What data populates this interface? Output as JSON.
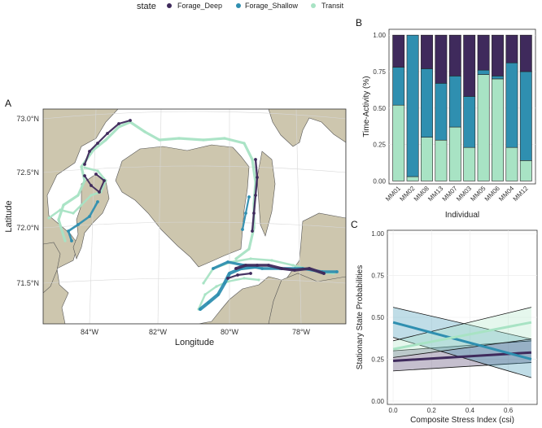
{
  "legend": {
    "title": "state",
    "items": [
      {
        "label": "Forage_Deep",
        "color": "#3f2a5c"
      },
      {
        "label": "Forage_Shallow",
        "color": "#2f8fb0"
      },
      {
        "label": "Transit",
        "color": "#a8e3c4"
      }
    ]
  },
  "panel_labels": {
    "a": "A",
    "b": "B",
    "c": "C"
  },
  "map": {
    "xlabel": "Longitude",
    "ylabel": "Latitude",
    "x_ticks": [
      "84°W",
      "82°W",
      "80°W",
      "78°W"
    ],
    "y_ticks": [
      "73.0°N",
      "72.5°N",
      "72.0°N",
      "71.5°N"
    ],
    "colors": {
      "land": "#cdc6ae",
      "water": "#ffffff",
      "coast": "#4a4a4a"
    }
  },
  "chart_data": [
    {
      "type": "bar",
      "stacked": true,
      "xlabel": "Individual",
      "ylabel": "Time-Activity (%)",
      "ylim": [
        0,
        1
      ],
      "y_ticks": [
        "0.00",
        "0.25",
        "0.50",
        "0.75",
        "1.00"
      ],
      "categories": [
        "MM01",
        "MM02",
        "MM08",
        "MM13",
        "MM07",
        "MM03",
        "MM05",
        "MM06",
        "MM04",
        "MM12"
      ],
      "series": [
        {
          "name": "Transit",
          "color": "#a8e3c4",
          "values": [
            0.52,
            0.03,
            0.3,
            0.28,
            0.37,
            0.23,
            0.73,
            0.7,
            0.23,
            0.14
          ]
        },
        {
          "name": "Forage_Shallow",
          "color": "#2f8fb0",
          "values": [
            0.26,
            0.97,
            0.47,
            0.39,
            0.35,
            0.35,
            0.03,
            0.02,
            0.58,
            0.61
          ]
        },
        {
          "name": "Forage_Deep",
          "color": "#3f2a5c",
          "values": [
            0.22,
            0.0,
            0.23,
            0.33,
            0.28,
            0.42,
            0.24,
            0.28,
            0.19,
            0.25
          ]
        }
      ]
    },
    {
      "type": "line",
      "xlabel": "Composite Stress Index (csi)",
      "ylabel": "Stationary State Probabilities",
      "xlim": [
        -0.03,
        0.75
      ],
      "ylim": [
        -0.02,
        1.02
      ],
      "x_ticks": [
        "0.0",
        "0.2",
        "0.4",
        "0.6"
      ],
      "y_ticks": [
        "0.00",
        "0.25",
        "0.50",
        "0.75",
        "1.00"
      ],
      "x": [
        0.0,
        0.72
      ],
      "series": [
        {
          "name": "Forage_Deep",
          "color": "#3f2a5c",
          "values": [
            0.24,
            0.29
          ],
          "ci_lower": [
            0.18,
            0.23
          ],
          "ci_upper": [
            0.3,
            0.36
          ]
        },
        {
          "name": "Forage_Shallow",
          "color": "#2f8fb0",
          "values": [
            0.47,
            0.25
          ],
          "ci_lower": [
            0.38,
            0.14
          ],
          "ci_upper": [
            0.56,
            0.37
          ]
        },
        {
          "name": "Transit",
          "color": "#a8e3c4",
          "values": [
            0.31,
            0.47
          ],
          "ci_lower": [
            0.26,
            0.37
          ],
          "ci_upper": [
            0.36,
            0.56
          ]
        }
      ]
    }
  ]
}
